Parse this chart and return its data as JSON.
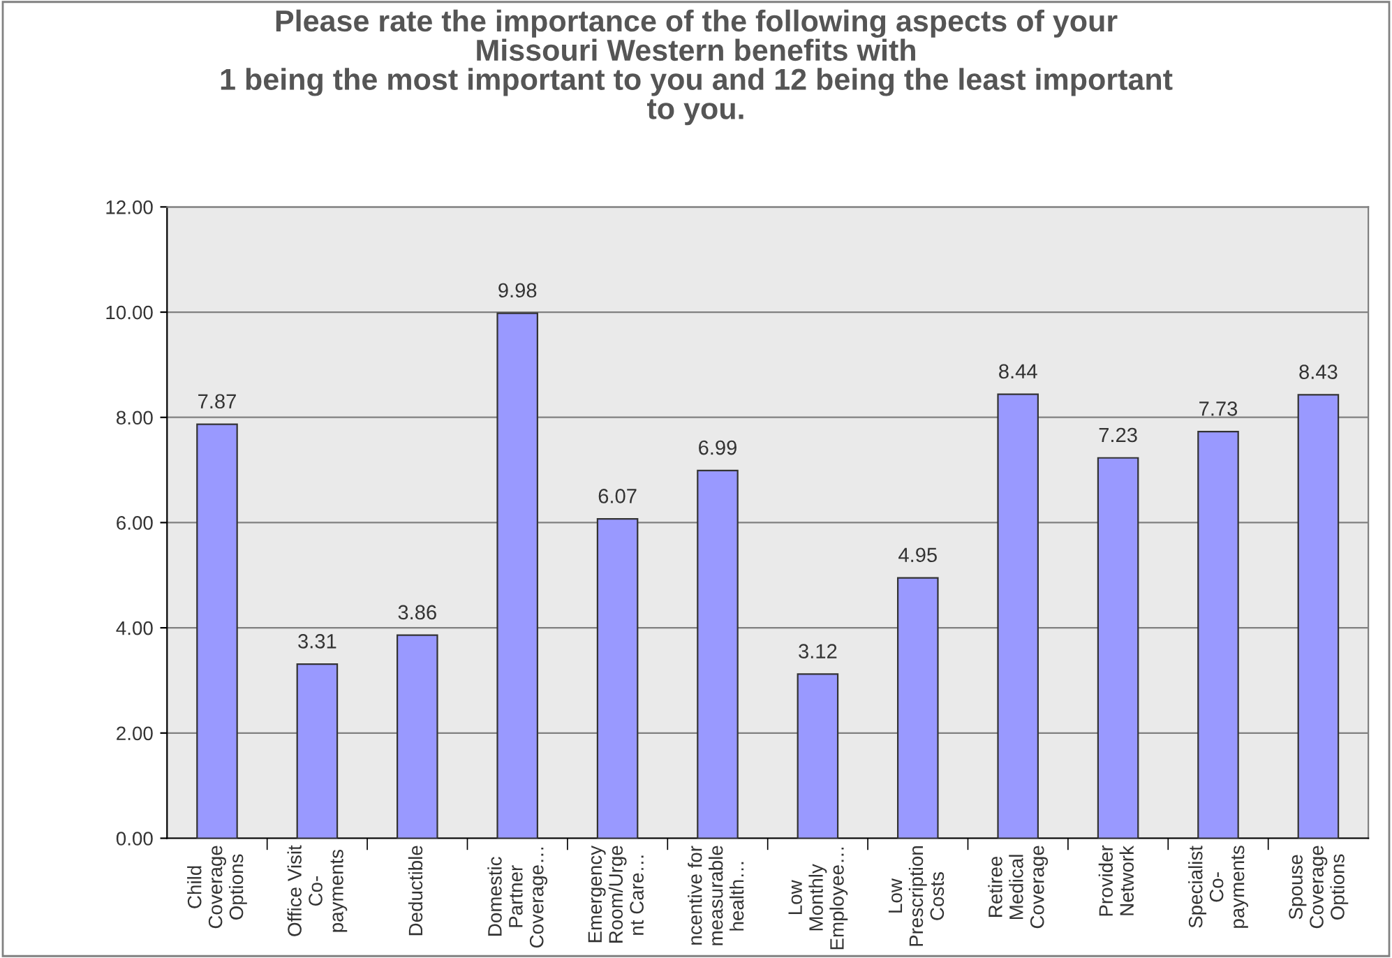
{
  "chart_data": {
    "type": "bar",
    "title": "Please rate the importance of the following aspects of your\nMissouri Western benefits with\n1 being the most important to you and 12 being the least important\nto you.",
    "categories": [
      "Child\nCoverage\nOptions",
      "Office Visit\nCo-\npayments",
      "Deductible",
      "Domestic\nPartner\nCoverage…",
      "Emergency\nRoom/Urge\nnt Care…",
      "ncentive for\nmeasurable\nhealth…",
      "Low\nMonthly\nEmployee…",
      "Low\nPrescription\nCosts",
      "Retiree\nMedical\nCoverage",
      "Provider\nNetwork",
      "Specialist\nCo-\npayments",
      "Spouse\nCoverage\nOptions"
    ],
    "values": [
      7.87,
      3.31,
      3.86,
      9.98,
      6.07,
      6.99,
      3.12,
      4.95,
      8.44,
      7.23,
      7.73,
      8.43
    ],
    "color": "#9999ff",
    "ylim": [
      0,
      12
    ],
    "yticks": [
      {
        "value": 0,
        "label": "0.00"
      },
      {
        "value": 2,
        "label": "2.00"
      },
      {
        "value": 4,
        "label": "4.00"
      },
      {
        "value": 6,
        "label": "6.00"
      },
      {
        "value": 8,
        "label": "8.00"
      },
      {
        "value": 10,
        "label": "10.00"
      },
      {
        "value": 12,
        "label": "12.00"
      }
    ],
    "grid": "y",
    "data_labels": true
  }
}
